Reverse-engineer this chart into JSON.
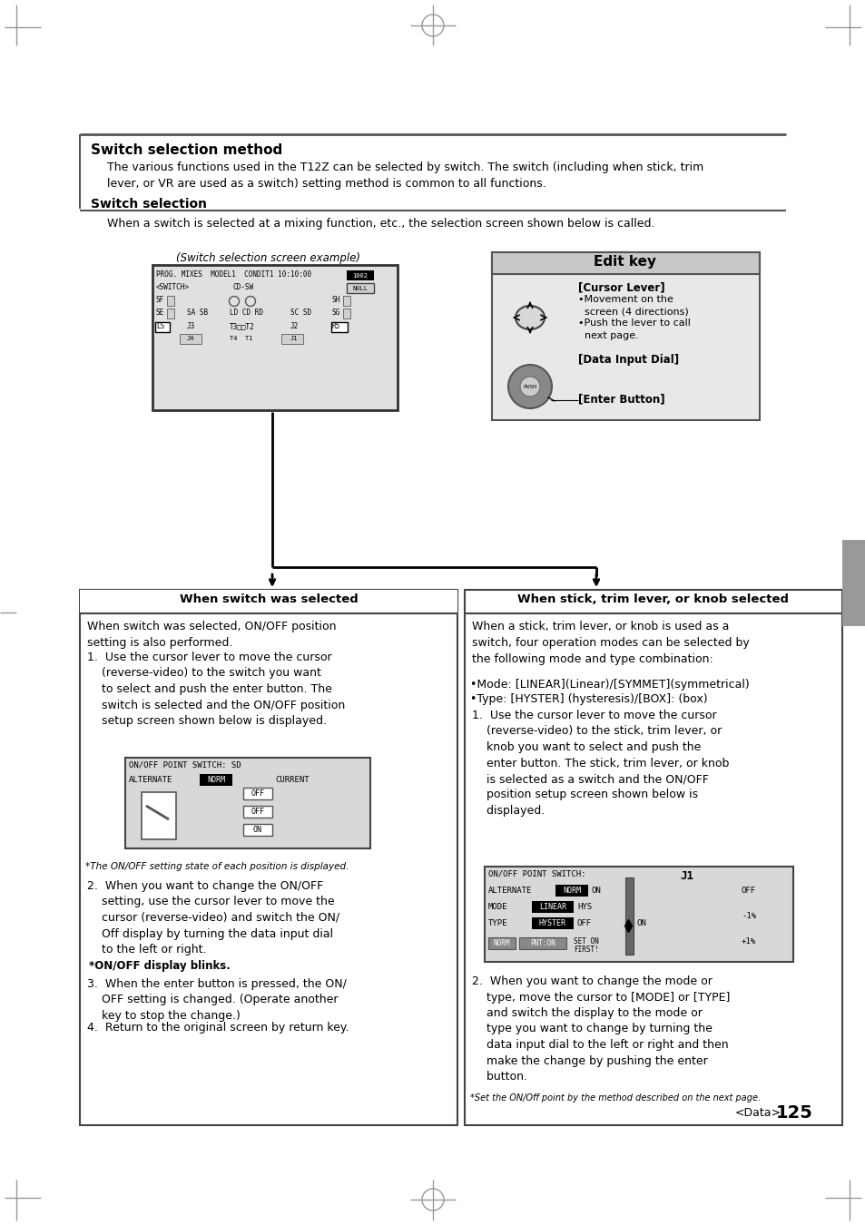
{
  "bg_color": "#ffffff",
  "page_number": "125",
  "title_text": "Switch selection method",
  "intro_text": "The various functions used in the T12Z can be selected by switch. The switch (including when stick, trim\nlever, or VR are used as a switch) setting method is common to all functions.",
  "switch_selection_header": "Switch selection",
  "switch_selection_body": "When a switch is selected at a mixing function, etc., the selection screen shown below is called.",
  "screen_example_label": "(Switch selection screen example)",
  "edit_key_title": "Edit key",
  "left_box_title": "When switch was selected",
  "right_box_title": "When stick, trim lever, or knob selected"
}
